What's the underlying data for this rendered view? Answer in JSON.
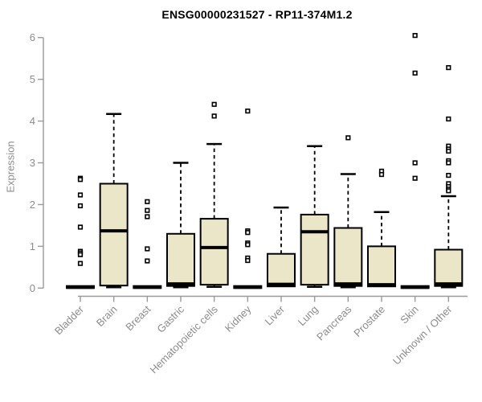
{
  "title": "ENSG00000231527 - RP11-374M1.2",
  "colors": {
    "box_fill": "#ece6c8",
    "box_stroke": "#000000",
    "median": "#000000",
    "whisker": "#000000",
    "outlier_stroke": "#000000",
    "outlier_fill": "#ffffff",
    "axis_line": "#9a9a9a",
    "axis_text": "#8c8c8c",
    "title_text": "#000000",
    "background": "#ffffff"
  },
  "chart_data": {
    "type": "boxplot",
    "title": "ENSG00000231527 - RP11-374M1.2",
    "xlabel": "",
    "ylabel": "Expression",
    "ylim": [
      0,
      6
    ],
    "yticks": [
      0,
      1,
      2,
      3,
      4,
      5,
      6
    ],
    "grid": false,
    "legend": "none",
    "categories": [
      "Bladder",
      "Brain",
      "Breast",
      "Gastric",
      "Hematopoietic cells",
      "Kidney",
      "Liver",
      "Lung",
      "Pancreas",
      "Prostate",
      "Skin",
      "Unknown / Other"
    ],
    "series": [
      {
        "category": "Bladder",
        "whisker_low": 0,
        "q1": 0,
        "median": 0.02,
        "q3": 0.05,
        "whisker_high": 0.05,
        "outliers": [
          2.63,
          2.6,
          2.23,
          1.97,
          1.46,
          0.88,
          0.84,
          0.8,
          0.59
        ]
      },
      {
        "category": "Brain",
        "whisker_low": 0.02,
        "q1": 0.06,
        "median": 1.37,
        "q3": 2.5,
        "whisker_high": 4.17,
        "outliers": []
      },
      {
        "category": "Breast",
        "whisker_low": 0,
        "q1": 0,
        "median": 0.02,
        "q3": 0.05,
        "whisker_high": 0.05,
        "outliers": [
          2.07,
          1.86,
          1.71,
          0.94,
          0.65
        ]
      },
      {
        "category": "Gastric",
        "whisker_low": 0.02,
        "q1": 0.05,
        "median": 0.1,
        "q3": 1.3,
        "whisker_high": 3.0,
        "outliers": []
      },
      {
        "category": "Hematopoietic cells",
        "whisker_low": 0.03,
        "q1": 0.08,
        "median": 0.97,
        "q3": 1.66,
        "whisker_high": 3.45,
        "outliers": [
          4.4,
          4.12
        ]
      },
      {
        "category": "Kidney",
        "whisker_low": 0,
        "q1": 0,
        "median": 0.02,
        "q3": 0.05,
        "whisker_high": 0.05,
        "outliers": [
          4.24,
          1.37,
          1.33,
          1.08,
          1.04,
          0.72,
          0.66
        ]
      },
      {
        "category": "Liver",
        "whisker_low": 0.02,
        "q1": 0.04,
        "median": 0.09,
        "q3": 0.82,
        "whisker_high": 1.93,
        "outliers": []
      },
      {
        "category": "Lung",
        "whisker_low": 0.03,
        "q1": 0.08,
        "median": 1.35,
        "q3": 1.76,
        "whisker_high": 3.4,
        "outliers": []
      },
      {
        "category": "Pancreas",
        "whisker_low": 0.02,
        "q1": 0.05,
        "median": 0.1,
        "q3": 1.44,
        "whisker_high": 2.73,
        "outliers": [
          3.6
        ]
      },
      {
        "category": "Prostate",
        "whisker_low": 0.02,
        "q1": 0.04,
        "median": 0.08,
        "q3": 1.0,
        "whisker_high": 1.82,
        "outliers": [
          2.8,
          2.72
        ]
      },
      {
        "category": "Skin",
        "whisker_low": 0,
        "q1": 0,
        "median": 0.02,
        "q3": 0.05,
        "whisker_high": 0.05,
        "outliers": [
          6.05,
          5.15,
          3.0,
          2.63
        ]
      },
      {
        "category": "Unknown / Other",
        "whisker_low": 0.02,
        "q1": 0.05,
        "median": 0.1,
        "q3": 0.92,
        "whisker_high": 2.2,
        "outliers": [
          5.28,
          4.05,
          3.4,
          3.33,
          3.28,
          3.05,
          3.0,
          2.7,
          2.5,
          2.43,
          2.37,
          2.33
        ]
      }
    ]
  }
}
